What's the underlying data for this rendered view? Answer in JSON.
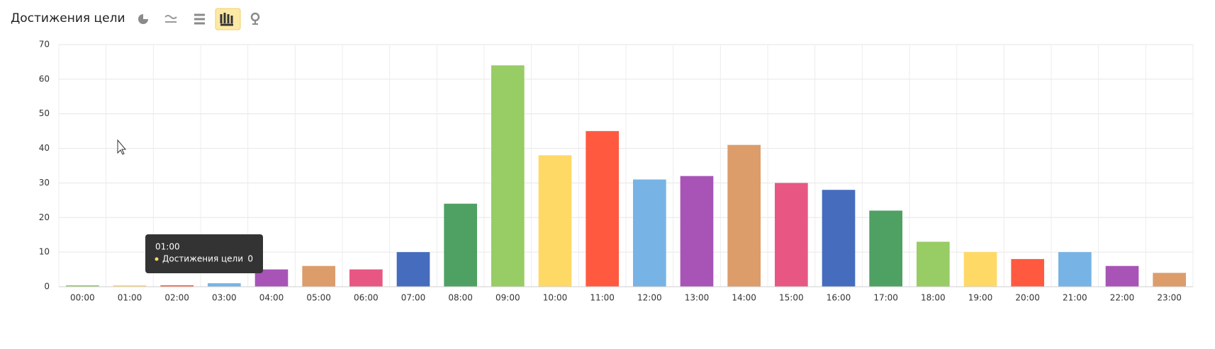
{
  "chart_data": {
    "type": "bar",
    "title": "Достижения цели",
    "categories": [
      "00:00",
      "01:00",
      "02:00",
      "03:00",
      "04:00",
      "05:00",
      "06:00",
      "07:00",
      "08:00",
      "09:00",
      "10:00",
      "11:00",
      "12:00",
      "13:00",
      "14:00",
      "15:00",
      "16:00",
      "17:00",
      "18:00",
      "19:00",
      "20:00",
      "21:00",
      "22:00",
      "23:00"
    ],
    "values": [
      0,
      0,
      0,
      1,
      5,
      6,
      5,
      10,
      24,
      64,
      38,
      45,
      31,
      32,
      41,
      30,
      28,
      22,
      13,
      10,
      8,
      10,
      6,
      4
    ],
    "colors": [
      "#98cc65",
      "#ffd966",
      "#ff5a40",
      "#77b3e5",
      "#a854b7",
      "#dc9d6b",
      "#e85783",
      "#466cbe",
      "#4ea163",
      "#98cc65",
      "#ffd966",
      "#ff5a40",
      "#77b3e5",
      "#a854b7",
      "#dc9d6b",
      "#e85783",
      "#466cbe",
      "#4ea163",
      "#98cc65",
      "#ffd966",
      "#ff5a40",
      "#77b3e5",
      "#a854b7",
      "#dc9d6b"
    ],
    "ylim": [
      0,
      70
    ],
    "yticks": [
      0,
      10,
      20,
      30,
      40,
      50,
      60,
      70
    ],
    "grid": true
  }
}
